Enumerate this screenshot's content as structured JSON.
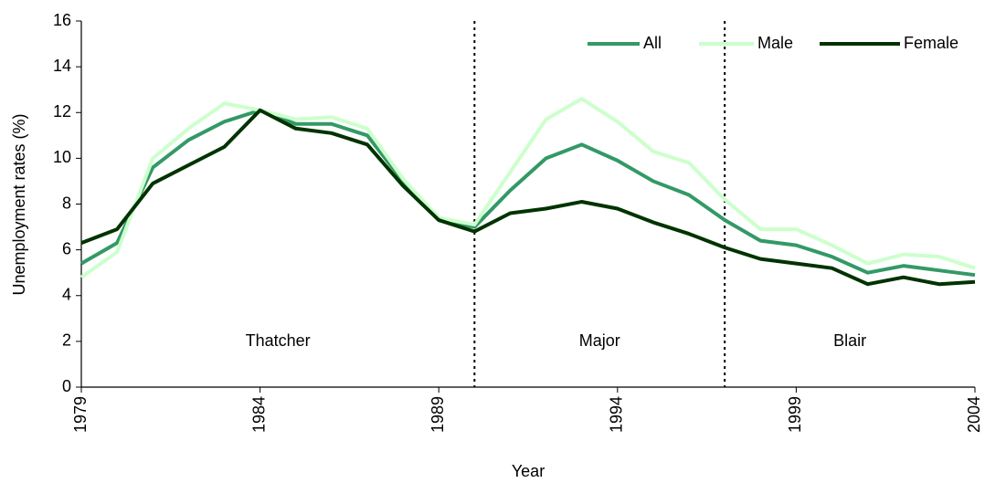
{
  "chart_data": {
    "type": "line",
    "x_label": "Year",
    "y_label": "Unemployment rates (%)",
    "x": [
      1979,
      1980,
      1981,
      1982,
      1983,
      1984,
      1985,
      1986,
      1987,
      1988,
      1989,
      1990,
      1991,
      1992,
      1993,
      1994,
      1995,
      1996,
      1997,
      1998,
      1999,
      2000,
      2001,
      2002,
      2003,
      2004
    ],
    "series": [
      {
        "name": "All",
        "color": "#339966",
        "values": [
          5.4,
          6.3,
          9.6,
          10.8,
          11.6,
          12.1,
          11.5,
          11.5,
          11.0,
          9.0,
          7.3,
          7.0,
          8.6,
          10.0,
          10.6,
          9.9,
          9.0,
          8.4,
          7.3,
          6.4,
          6.2,
          5.7,
          5.0,
          5.3,
          5.1,
          4.9
        ]
      },
      {
        "name": "Male",
        "color": "#ccffcc",
        "values": [
          4.8,
          5.9,
          10.0,
          11.3,
          12.4,
          12.1,
          11.7,
          11.8,
          11.3,
          9.1,
          7.4,
          7.1,
          9.4,
          11.7,
          12.6,
          11.6,
          10.3,
          9.8,
          8.2,
          6.9,
          6.9,
          6.2,
          5.4,
          5.8,
          5.7,
          5.2
        ]
      },
      {
        "name": "Female",
        "color": "#003300",
        "values": [
          6.3,
          6.9,
          8.9,
          9.7,
          10.5,
          12.1,
          11.3,
          11.1,
          10.6,
          8.8,
          7.3,
          6.8,
          7.6,
          7.8,
          8.1,
          7.8,
          7.2,
          6.7,
          6.1,
          5.6,
          5.4,
          5.2,
          4.5,
          4.8,
          4.5,
          4.6
        ]
      }
    ],
    "xlim": [
      1979,
      2004
    ],
    "xticks": [
      1979,
      1984,
      1989,
      1994,
      1999,
      2004
    ],
    "ylim": [
      0,
      16
    ],
    "yticks": [
      0,
      2,
      4,
      6,
      8,
      10,
      12,
      14,
      16
    ],
    "period_boundaries": [
      1990,
      1997
    ],
    "period_labels": [
      "Thatcher",
      "Major",
      "Blair"
    ],
    "legend": "top-right",
    "grid": false
  }
}
